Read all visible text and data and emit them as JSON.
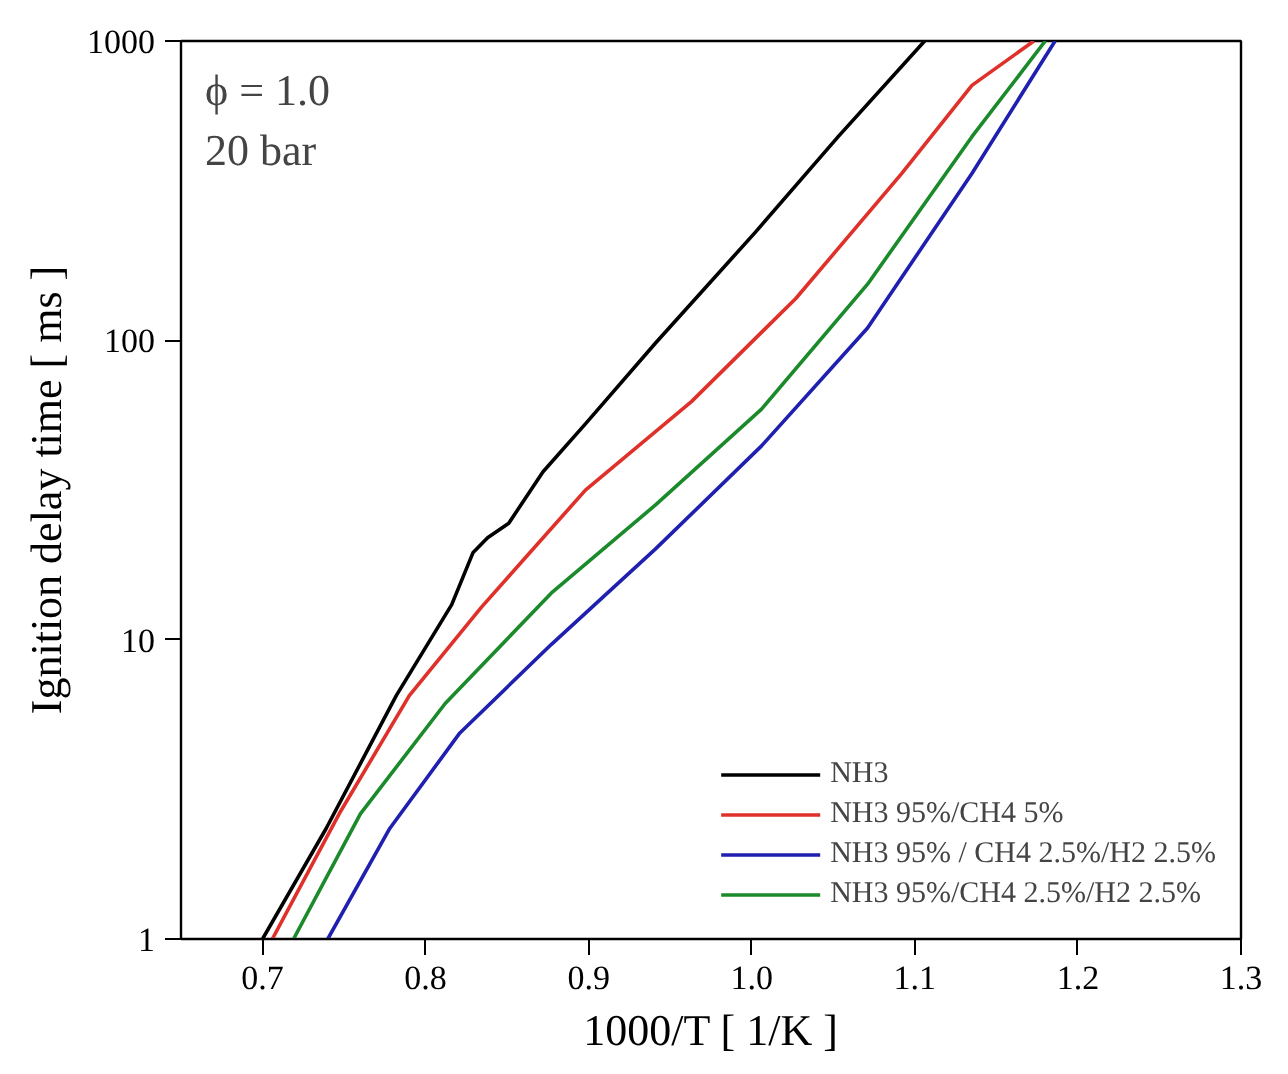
{
  "chart_data": {
    "type": "line",
    "xlabel": "1000/T [ 1/K ]",
    "ylabel": "Ignition delay time [ ms ]",
    "annotations": [
      "ϕ = 1.0",
      "20 bar"
    ],
    "xlim": [
      0.65,
      1.3
    ],
    "xticks": [
      0.7,
      0.8,
      0.9,
      {
        "value": 1.0,
        "label": "1.0"
      },
      1.1,
      1.2,
      1.3
    ],
    "ylim": [
      1,
      1000
    ],
    "yticks": [
      1,
      10,
      100,
      1000
    ],
    "log": "y",
    "grid": false,
    "legend": "bottom right",
    "line_style": "solid",
    "marker": "none",
    "series": [
      {
        "name": "NH3",
        "color": "#000000",
        "x": [
          0.7,
          0.739,
          0.782,
          0.816,
          0.829,
          0.838,
          0.851,
          0.872,
          0.898,
          0.941,
          1.002,
          1.053,
          1.106
        ],
        "values": [
          1,
          2.34,
          6.5,
          13.1,
          19.5,
          21.9,
          24.5,
          36.4,
          52.6,
          98,
          229,
          479,
          1000
        ]
      },
      {
        "name": "NH3 95%/CH4 5%",
        "color": "#e0302a",
        "x": [
          0.706,
          0.747,
          0.79,
          0.834,
          0.898,
          0.963,
          1.027,
          1.092,
          1.135,
          1.173
        ],
        "values": [
          1,
          2.62,
          6.5,
          12.8,
          31.6,
          62.4,
          138,
          361,
          711,
          1000
        ]
      },
      {
        "name": "NH3 95% / CH4 2.5%/H2 2.5%",
        "color": "#1f1fb0",
        "x": [
          0.74,
          0.778,
          0.821,
          0.877,
          0.941,
          1.006,
          1.071,
          1.135,
          1.186
        ],
        "values": [
          1,
          2.34,
          4.88,
          9.63,
          20.1,
          44.4,
          110,
          361,
          1000
        ]
      },
      {
        "name": "NH3 95%/CH4 2.5%/H2 2.5%",
        "color": "#1a8a2a",
        "x": [
          0.719,
          0.76,
          0.812,
          0.877,
          0.941,
          1.006,
          1.071,
          1.135,
          1.18
        ],
        "values": [
          1,
          2.62,
          6.12,
          14.3,
          28.2,
          58.9,
          154,
          479,
          1000
        ]
      }
    ]
  }
}
